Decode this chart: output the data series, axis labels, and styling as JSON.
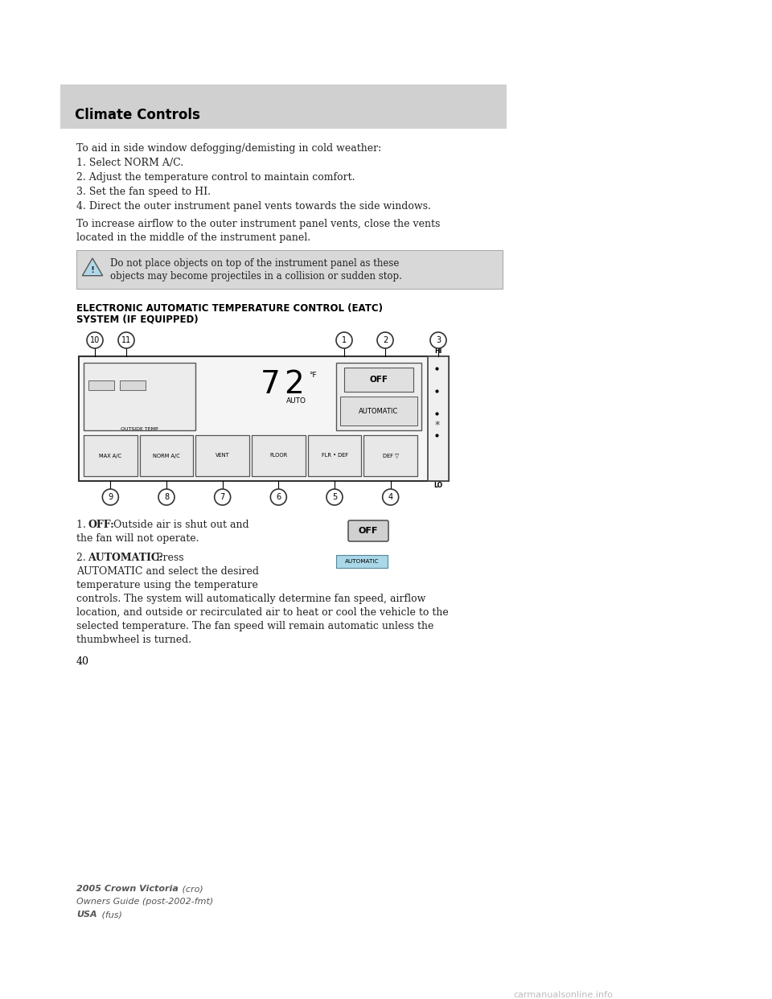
{
  "page_bg": "#ffffff",
  "header_bg": "#d0d0d0",
  "header_text": "Climate Controls",
  "header_text_color": "#000000",
  "header_fontsize": 12,
  "body_text_color": "#222222",
  "body_fontsize": 9.0,
  "paragraph1": "To aid in side window defogging/demisting in cold weather:",
  "list_items": [
    "1. Select NORM A/C.",
    "2. Adjust the temperature control to maintain comfort.",
    "3. Set the fan speed to HI.",
    "4. Direct the outer instrument panel vents towards the side windows."
  ],
  "paragraph2_line1": "To increase airflow to the outer instrument panel vents, close the vents",
  "paragraph2_line2": "located in the middle of the instrument panel.",
  "warning_bg": "#d8d8d8",
  "warning_text_line1": "Do not place objects on top of the instrument panel as these",
  "warning_text_line2": "objects may become projectiles in a collision or sudden stop.",
  "section_title_line1": "ELECTRONIC AUTOMATIC TEMPERATURE CONTROL (EATC)",
  "section_title_line2": "SYSTEM (IF EQUIPPED)",
  "section_title_fontsize": 8.5,
  "footer_line1_bold": "2005 Crown Victoria",
  "footer_line1_italic": " (cro)",
  "footer_line2": "Owners Guide (post-2002-fmt)",
  "footer_line3_bold": "USA",
  "footer_line3_italic": " (fus)",
  "page_number": "40",
  "watermark": "carmanualsonline.info"
}
